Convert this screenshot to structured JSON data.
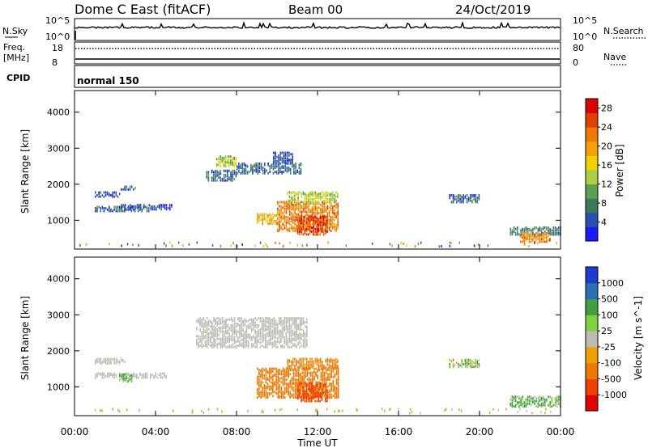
{
  "header": {
    "station": "Dome C East (fitACF)",
    "beam": "Beam 00",
    "date": "24/Oct/2019"
  },
  "strip_nsky": {
    "left_label": "N.Sky",
    "right_label": "N.Search",
    "left_ticks": [
      "10^5",
      "10^0"
    ],
    "right_ticks": [
      "10^5",
      "10^0"
    ]
  },
  "strip_freq": {
    "left_label_line1": "Freq.",
    "left_label_line2": "[MHz]",
    "right_label": "Nave",
    "left_ticks": [
      "18",
      "8"
    ],
    "right_ticks": [
      "80",
      "0"
    ]
  },
  "cpid": {
    "label": "CPID",
    "value": "normal 150"
  },
  "xaxis": {
    "title": "Time UT",
    "ticks": [
      "00:00",
      "04:00",
      "08:00",
      "12:00",
      "16:00",
      "20:00",
      "00:00"
    ]
  },
  "colors": {
    "power_scale": [
      "#1a1aff",
      "#2a4fb4",
      "#3a7a5a",
      "#5aa050",
      "#a8d040",
      "#f0d000",
      "#f5a000",
      "#f07800",
      "#e04000",
      "#e00000"
    ],
    "velocity_scale": [
      "#e00000",
      "#f04000",
      "#f07800",
      "#f0a000",
      "#bcbcb4",
      "#80d040",
      "#40a040",
      "#2a70b0",
      "#1a3ad0"
    ],
    "ground_scatter": "#bcbcb4"
  },
  "chart_data": [
    {
      "type": "heatmap",
      "title": "",
      "xlabel": "",
      "ylabel": "Slant Range [km]",
      "ylim": [
        200,
        4600
      ],
      "xlim": [
        0,
        24
      ],
      "yticks": [
        "1000",
        "2000",
        "3000",
        "4000"
      ],
      "colorbar": {
        "label": "Power [dB]",
        "ticks": [
          "4",
          "8",
          "12",
          "16",
          "20",
          "24",
          "28"
        ],
        "range": [
          0,
          30
        ]
      },
      "echo_regions": [
        {
          "t": [
            1.0,
            2.2
          ],
          "range": [
            1650,
            1800
          ],
          "value": 4
        },
        {
          "t": [
            1.0,
            3.7
          ],
          "range": [
            1250,
            1400
          ],
          "value": 6
        },
        {
          "t": [
            2.3,
            4.8
          ],
          "range": [
            1300,
            1450
          ],
          "value": 4
        },
        {
          "t": [
            2.2,
            3.0
          ],
          "range": [
            1850,
            1950
          ],
          "value": 6
        },
        {
          "t": [
            6.5,
            8.0
          ],
          "range": [
            2100,
            2400
          ],
          "value": 6
        },
        {
          "t": [
            7.0,
            8.0
          ],
          "range": [
            2500,
            2800
          ],
          "value": 14
        },
        {
          "t": [
            8.0,
            11.2
          ],
          "range": [
            2300,
            2600
          ],
          "value": 6
        },
        {
          "t": [
            9.8,
            10.8
          ],
          "range": [
            2600,
            2900
          ],
          "value": 5
        },
        {
          "t": [
            9.0,
            10.0
          ],
          "range": [
            900,
            1200
          ],
          "value": 18
        },
        {
          "t": [
            10.0,
            13.0
          ],
          "range": [
            700,
            1500
          ],
          "value": 22
        },
        {
          "t": [
            11.0,
            12.5
          ],
          "range": [
            600,
            1100
          ],
          "value": 26
        },
        {
          "t": [
            10.5,
            13.0
          ],
          "range": [
            1500,
            1800
          ],
          "value": 14
        },
        {
          "t": [
            18.5,
            20.0
          ],
          "range": [
            1500,
            1700
          ],
          "value": 6
        },
        {
          "t": [
            21.5,
            24.0
          ],
          "range": [
            600,
            800
          ],
          "value": 8
        },
        {
          "t": [
            22.0,
            23.5
          ],
          "range": [
            400,
            650
          ],
          "value": 22
        }
      ]
    },
    {
      "type": "heatmap",
      "title": "",
      "xlabel": "Time UT",
      "ylabel": "Slant Range [km]",
      "ylim": [
        200,
        4600
      ],
      "xlim": [
        0,
        24
      ],
      "yticks": [
        "1000",
        "2000",
        "3000",
        "4000"
      ],
      "colorbar": {
        "label": "Velocity [m s^-1]",
        "ticks": [
          "-1000",
          "-500",
          "-100",
          "-25",
          "25",
          "100",
          "500",
          "1000"
        ]
      },
      "echo_regions": [
        {
          "t": [
            1.0,
            2.5
          ],
          "range": [
            1650,
            1800
          ],
          "value": 0
        },
        {
          "t": [
            1.0,
            4.5
          ],
          "range": [
            1250,
            1400
          ],
          "value": 0
        },
        {
          "t": [
            2.2,
            2.8
          ],
          "range": [
            1150,
            1350
          ],
          "value": 150
        },
        {
          "t": [
            6.0,
            11.5
          ],
          "range": [
            2100,
            2900
          ],
          "value": 0
        },
        {
          "t": [
            9.0,
            13.0
          ],
          "range": [
            700,
            1500
          ],
          "value": -300
        },
        {
          "t": [
            11.0,
            12.5
          ],
          "range": [
            600,
            1100
          ],
          "value": -600
        },
        {
          "t": [
            10.5,
            13.0
          ],
          "range": [
            1500,
            1800
          ],
          "value": -150
        },
        {
          "t": [
            18.5,
            20.0
          ],
          "range": [
            1550,
            1750
          ],
          "value": 80
        },
        {
          "t": [
            21.5,
            24.0
          ],
          "range": [
            450,
            750
          ],
          "value": 120
        }
      ]
    }
  ]
}
